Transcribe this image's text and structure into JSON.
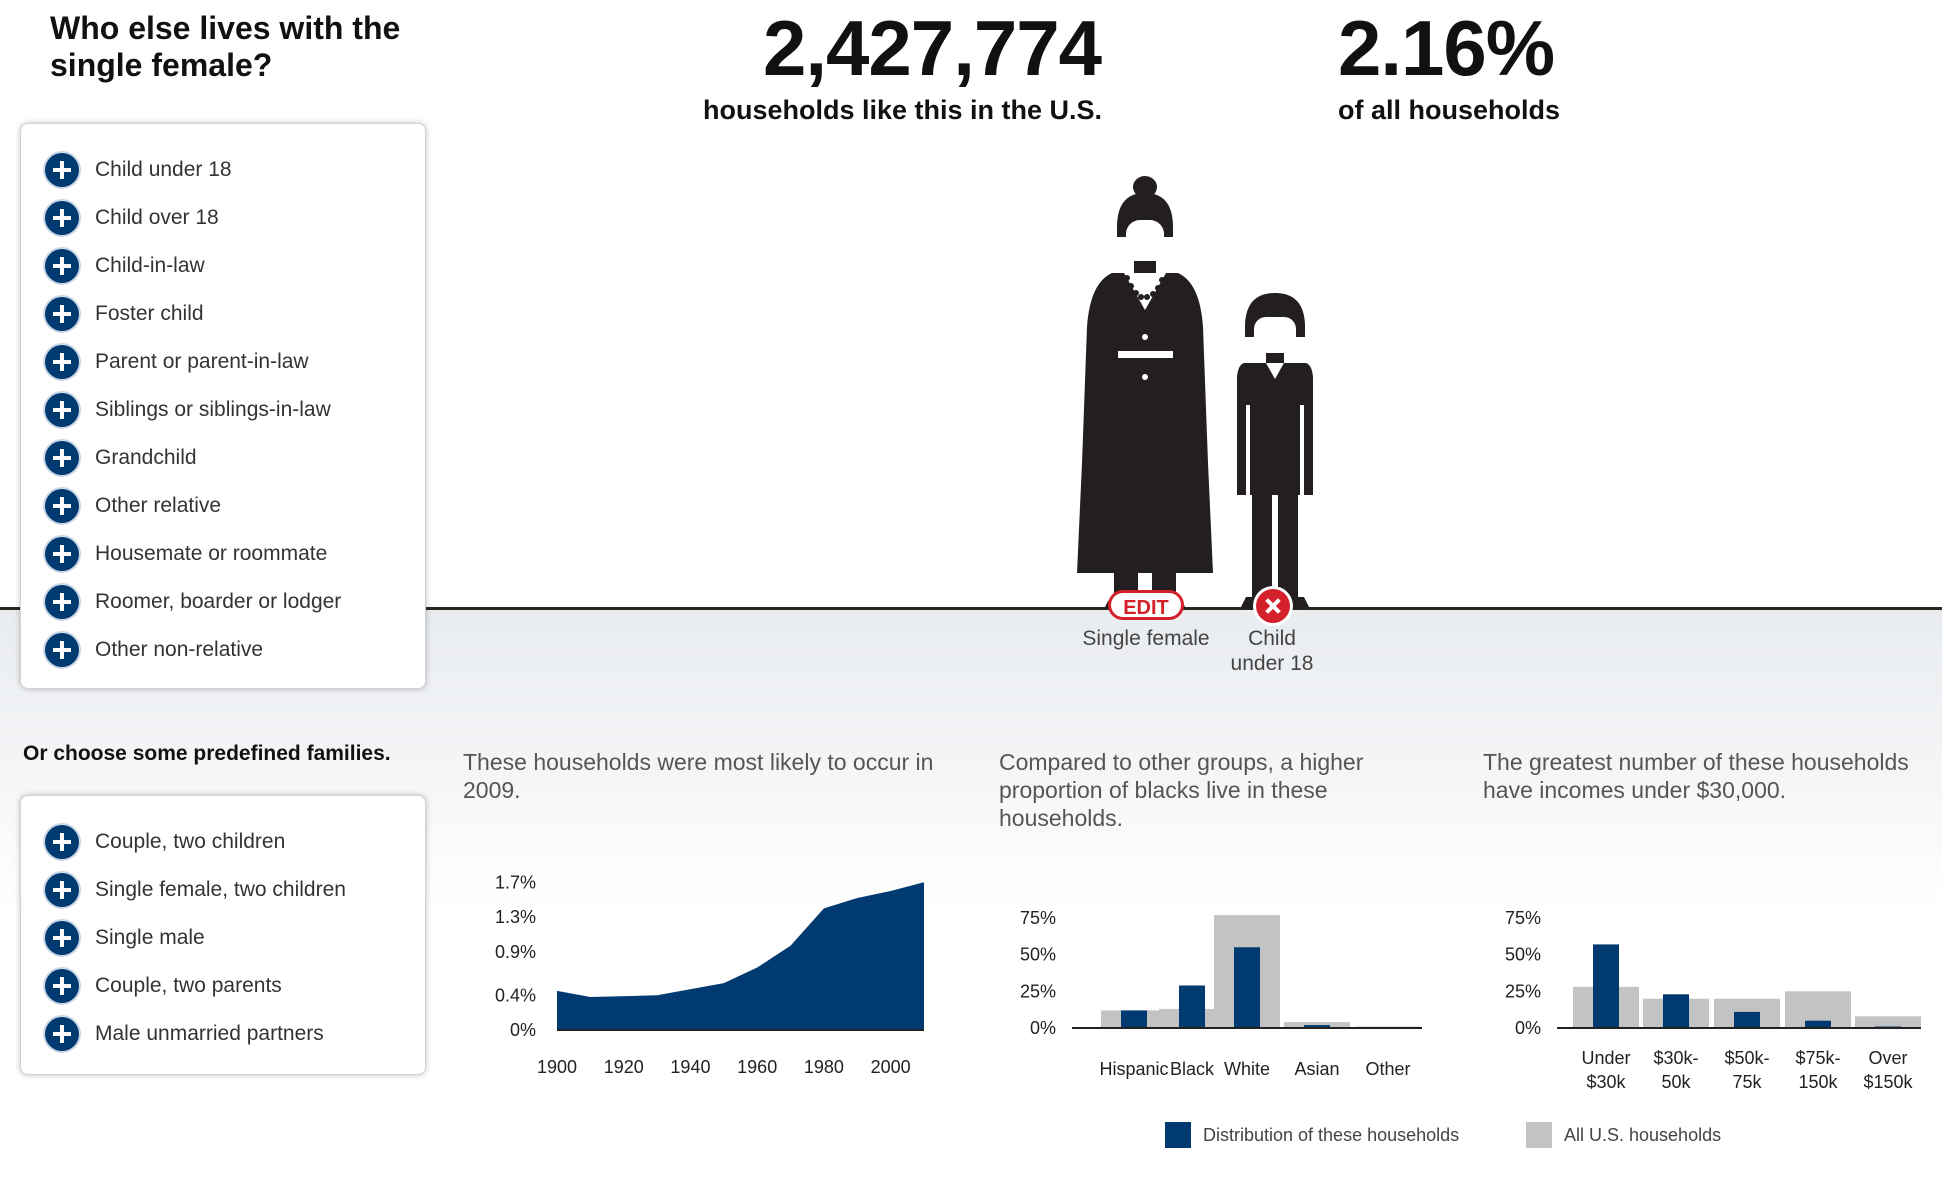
{
  "sidebar": {
    "question": "Who else lives with the single female?",
    "members": [
      "Child under 18",
      "Child over 18",
      "Child-in-law",
      "Foster child",
      "Parent or parent-in-law",
      "Siblings or siblings-in-law",
      "Grandchild",
      "Other relative",
      "Housemate or roommate",
      "Roomer, boarder or lodger",
      "Other non-relative"
    ],
    "predefined_heading": "Or choose some predefined families.",
    "predefined": [
      "Couple, two children",
      "Single female, two children",
      "Single male",
      "Couple, two parents",
      "Male unmarried partners"
    ]
  },
  "stats": {
    "households_count": "2,427,774",
    "households_caption": "households like this in the U.S.",
    "share": "2.16%",
    "share_caption": "of all households"
  },
  "household": {
    "edit_label": "EDIT",
    "members": [
      "Single female",
      "Child under 18"
    ]
  },
  "colors": {
    "dark_blue": "#003a70",
    "gray": "#c3c3c3",
    "red": "#d3202a"
  },
  "icons": {
    "add": "plus-circle-icon",
    "remove": "x-circle-icon"
  },
  "chart_data": [
    {
      "type": "area",
      "title": "These households were most likely to occur in 2009.",
      "x": [
        1900,
        1910,
        1930,
        1950,
        1960,
        1970,
        1980,
        1990,
        2000,
        2010
      ],
      "values": [
        0.45,
        0.38,
        0.4,
        0.54,
        0.72,
        0.97,
        1.4,
        1.52,
        1.6,
        1.7
      ],
      "ylim": [
        0,
        1.75
      ],
      "yticks": [
        "0%",
        "0.4%",
        "0.9%",
        "1.3%",
        "1.7%"
      ],
      "xticks": [
        "1900",
        "1920",
        "1940",
        "1960",
        "1980",
        "2000"
      ],
      "color": "#003a70"
    },
    {
      "type": "bar",
      "title": "Compared to other groups, a higher proportion of blacks live in these households.",
      "categories": [
        "Hispanic",
        "Black",
        "White",
        "Asian",
        "Other"
      ],
      "series": [
        {
          "name": "Distribution of these households",
          "values": [
            12,
            29,
            55,
            2,
            0.5
          ]
        },
        {
          "name": "All U.S. households",
          "values": [
            12,
            13,
            77,
            4,
            1
          ]
        }
      ],
      "ylim": [
        0,
        75
      ],
      "yticks": [
        "0%",
        "25%",
        "50%",
        "75%"
      ]
    },
    {
      "type": "bar",
      "title": "The greatest number of these households have incomes under $30,000.",
      "categories": [
        "Under $30k",
        "$30k-50k",
        "$50k-75k",
        "$75k-150k",
        "Over $150k"
      ],
      "series": [
        {
          "name": "Distribution of these households",
          "values": [
            57,
            23,
            11,
            5,
            1
          ]
        },
        {
          "name": "All U.S. households",
          "values": [
            28,
            20,
            20,
            25,
            8
          ]
        }
      ],
      "ylim": [
        0,
        75
      ],
      "yticks": [
        "0%",
        "25%",
        "50%",
        "75%"
      ]
    }
  ],
  "legend": {
    "series_a": "Distribution of these households",
    "series_b": "All U.S. households"
  }
}
